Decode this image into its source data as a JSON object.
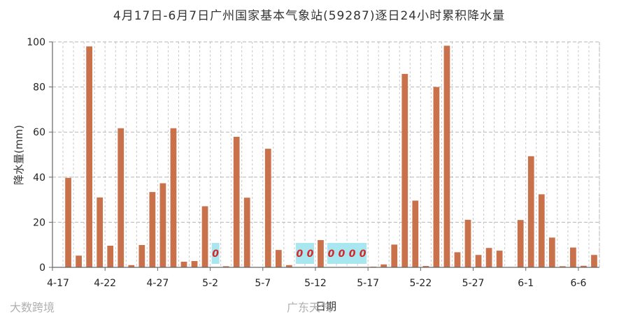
{
  "chart_data": {
    "type": "bar",
    "title": "4月17日-6月7日广州国家基本气象站(59287)逐日24小时累积降水量",
    "xlabel": "日期",
    "ylabel": "降水量(mm)",
    "ylim": [
      0,
      100
    ],
    "yticks": [
      0,
      20,
      40,
      60,
      80,
      100
    ],
    "grid": true,
    "bar_color": "#c9714a",
    "zero_box_color": "#a8e6f0",
    "zero_label_color": "#d62728",
    "categories": [
      "4-17",
      "4-18",
      "4-19",
      "4-20",
      "4-21",
      "4-22",
      "4-23",
      "4-24",
      "4-25",
      "4-26",
      "4-27",
      "4-28",
      "4-29",
      "4-30",
      "5-1",
      "5-2",
      "5-3",
      "5-4",
      "5-5",
      "5-6",
      "5-7",
      "5-8",
      "5-9",
      "5-10",
      "5-11",
      "5-12",
      "5-13",
      "5-14",
      "5-15",
      "5-16",
      "5-17",
      "5-18",
      "5-19",
      "5-20",
      "5-21",
      "5-22",
      "5-23",
      "5-24",
      "5-25",
      "5-26",
      "5-27",
      "5-28",
      "5-29",
      "5-30",
      "5-31",
      "6-1",
      "6-2",
      "6-3",
      "6-4",
      "6-5",
      "6-6",
      "6-7"
    ],
    "values": [
      0,
      39.7,
      5.2,
      98,
      31,
      9.6,
      61.7,
      1,
      9.9,
      33.4,
      37.3,
      61.7,
      2.5,
      2.8,
      27.1,
      0,
      0.5,
      57.9,
      30.9,
      0,
      52.6,
      7.7,
      1,
      0,
      0,
      12.1,
      0,
      0,
      0,
      0,
      0.3,
      1.3,
      10.1,
      85.8,
      29.6,
      0.6,
      80,
      98.3,
      6.7,
      21.1,
      5.5,
      8.6,
      7.4,
      0,
      21,
      49.3,
      32.4,
      13.2,
      0.5,
      8.8,
      0.7,
      5.5
    ],
    "xtick_labels": [
      "4-17",
      "4-22",
      "4-27",
      "5-2",
      "5-7",
      "5-12",
      "5-17",
      "5-22",
      "5-27",
      "6-1",
      "6-6"
    ],
    "zero_labels": [
      "0",
      "0",
      "0",
      "0",
      "0",
      "0",
      "0"
    ]
  },
  "watermarks": {
    "left": "大数跨境",
    "right": "广东天气"
  }
}
